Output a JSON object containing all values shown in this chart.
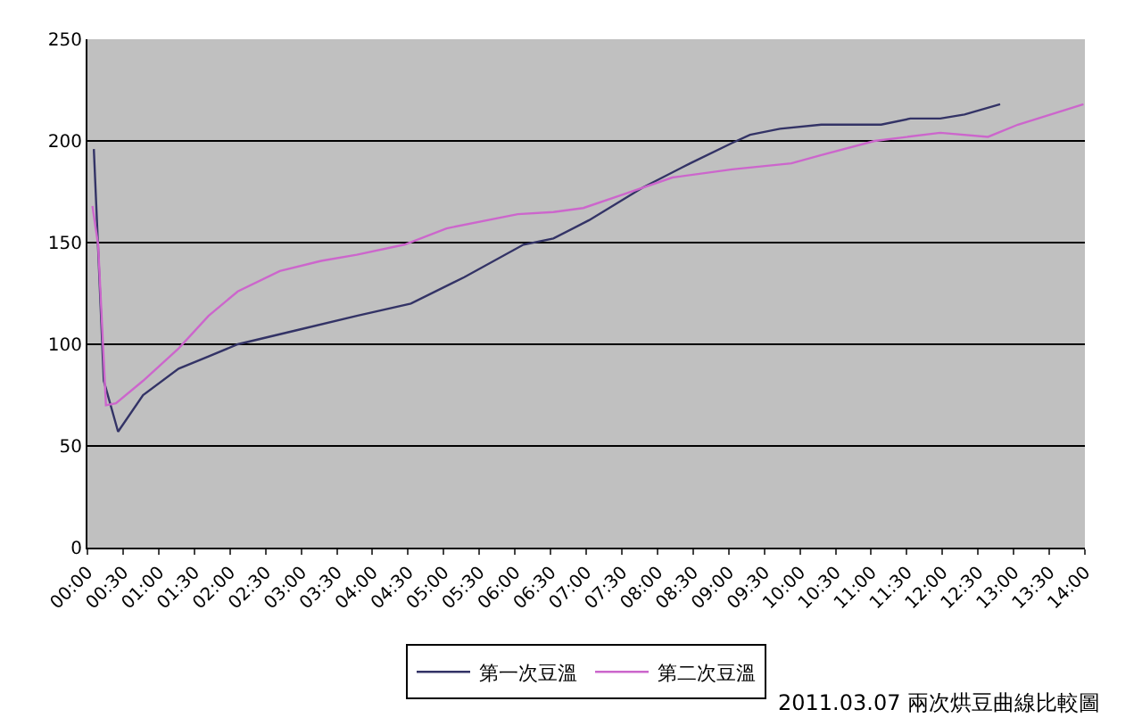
{
  "chart_data": {
    "type": "line",
    "xlim": [
      0,
      14
    ],
    "xticks": [
      {
        "value": 0,
        "label": "00:00"
      },
      {
        "value": 0.5,
        "label": "00:30"
      },
      {
        "value": 1,
        "label": "01:00"
      },
      {
        "value": 1.5,
        "label": "01:30"
      },
      {
        "value": 2,
        "label": "02:00"
      },
      {
        "value": 2.5,
        "label": "02:30"
      },
      {
        "value": 3,
        "label": "03:00"
      },
      {
        "value": 3.5,
        "label": "03:30"
      },
      {
        "value": 4,
        "label": "04:00"
      },
      {
        "value": 4.5,
        "label": "04:30"
      },
      {
        "value": 5,
        "label": "05:00"
      },
      {
        "value": 5.5,
        "label": "05:30"
      },
      {
        "value": 6,
        "label": "06:00"
      },
      {
        "value": 6.5,
        "label": "06:30"
      },
      {
        "value": 7,
        "label": "07:00"
      },
      {
        "value": 7.5,
        "label": "07:30"
      },
      {
        "value": 8,
        "label": "08:00"
      },
      {
        "value": 8.5,
        "label": "08:30"
      },
      {
        "value": 9,
        "label": "09:00"
      },
      {
        "value": 9.5,
        "label": "09:30"
      },
      {
        "value": 10,
        "label": "10:00"
      },
      {
        "value": 10.5,
        "label": "10:30"
      },
      {
        "value": 11,
        "label": "11:00"
      },
      {
        "value": 11.5,
        "label": "11:30"
      },
      {
        "value": 12,
        "label": "12:00"
      },
      {
        "value": 12.5,
        "label": "12:30"
      },
      {
        "value": 13,
        "label": "13:00"
      },
      {
        "value": 13.5,
        "label": "13:30"
      },
      {
        "value": 14,
        "label": "14:00"
      }
    ],
    "ylim": [
      0,
      250
    ],
    "yticks": [
      0,
      50,
      100,
      150,
      200,
      250
    ],
    "grid": "y",
    "legend": "bottom",
    "marker": "none",
    "line_style": "solid",
    "annotations": [
      "2011.03.07 兩次烘豆曲線比較圖"
    ],
    "series": [
      {
        "name": "第一次豆溫",
        "color": "#333366",
        "x": [
          0.09,
          0.23,
          0.43,
          0.78,
          1.28,
          1.7,
          2.11,
          2.95,
          3.78,
          4.54,
          5.29,
          6.12,
          6.54,
          7.04,
          7.79,
          8.46,
          9.05,
          9.3,
          9.72,
          10.3,
          11.14,
          11.55,
          11.97,
          12.31,
          12.81
        ],
        "values": [
          196,
          82,
          57,
          75,
          88,
          94,
          100,
          107,
          114,
          120,
          133,
          149,
          152,
          161,
          177,
          189,
          199,
          203,
          206,
          208,
          208,
          211,
          211,
          213,
          218
        ]
      },
      {
        "name": "第二次豆溫",
        "color": "#cc66cc",
        "x": [
          0.07,
          0.15,
          0.26,
          0.4,
          0.78,
          1.28,
          1.7,
          2.11,
          2.7,
          3.28,
          3.78,
          4.45,
          5.04,
          6.04,
          6.54,
          6.96,
          7.46,
          8.21,
          9.05,
          9.88,
          10.3,
          11.05,
          11.97,
          12.64,
          13.06,
          13.98
        ],
        "values": [
          168,
          149,
          70,
          71,
          82,
          98,
          114,
          126,
          136,
          141,
          144,
          149,
          157,
          164,
          165,
          167,
          173,
          182,
          186,
          189,
          193,
          200,
          204,
          202,
          208,
          218
        ]
      }
    ]
  }
}
